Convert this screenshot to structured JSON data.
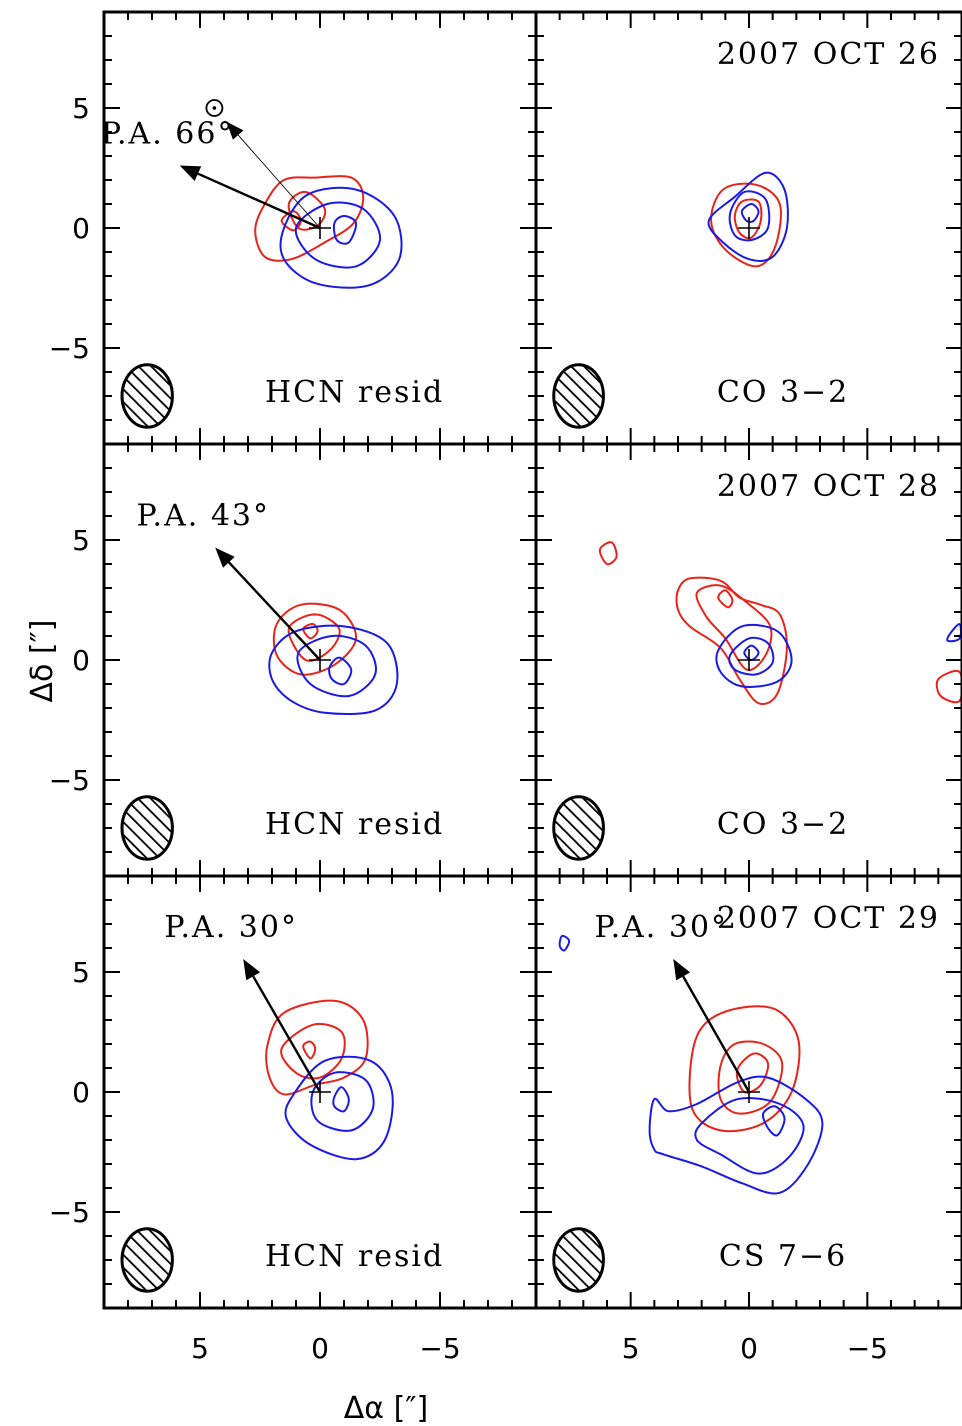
{
  "chart_data": {
    "type": "contour",
    "xlabel": "Δα [″]",
    "ylabel": "Δδ [″]",
    "xlim": [
      9,
      -9
    ],
    "ylim": [
      -9,
      9
    ],
    "x_ticks": [
      5,
      0,
      -5
    ],
    "x_tick_labels": [
      "5",
      "0",
      "−5"
    ],
    "y_ticks": [
      5,
      0,
      -5
    ],
    "y_tick_labels": [
      "5",
      "0",
      "−5"
    ],
    "colors": {
      "red": "#e8231a",
      "blue": "#1a1ae6",
      "axis": "#000000"
    },
    "panels": [
      {
        "row": 0,
        "col": 0,
        "label": "HCN resid",
        "date": "",
        "pa_label": "P.A. 66°",
        "pa_deg": 66,
        "sun_symbol": "⊙",
        "sun_pos": [
          4.4,
          5.0
        ],
        "red": [
          [
            [
              2.3,
              1.0
            ],
            [
              1.5,
              2.0
            ],
            [
              0.2,
              2.1
            ],
            [
              -1.3,
              2.1
            ],
            [
              -1.8,
              1.3
            ],
            [
              -1.4,
              0.2
            ],
            [
              -0.2,
              -0.6
            ],
            [
              1.2,
              -1.3
            ],
            [
              2.3,
              -1.2
            ],
            [
              2.7,
              -0.1
            ]
          ],
          [
            [
              1.3,
              1.0
            ],
            [
              0.6,
              1.5
            ],
            [
              -0.2,
              0.8
            ],
            [
              0.1,
              0.1
            ],
            [
              0.9,
              0.0
            ]
          ],
          [
            [
              1.6,
              0.3
            ],
            [
              1.1,
              0.7
            ],
            [
              0.8,
              0.3
            ],
            [
              1.1,
              -0.1
            ]
          ]
        ],
        "blue": [
          [
            [
              1.5,
              0.0
            ],
            [
              0.5,
              1.4
            ],
            [
              -1.5,
              1.6
            ],
            [
              -3.1,
              0.5
            ],
            [
              -3.3,
              -1.3
            ],
            [
              -2.0,
              -2.4
            ],
            [
              0.2,
              -2.3
            ],
            [
              1.5,
              -1.3
            ]
          ],
          [
            [
              1.0,
              0.0
            ],
            [
              -0.3,
              1.0
            ],
            [
              -1.8,
              0.8
            ],
            [
              -2.5,
              -0.5
            ],
            [
              -1.5,
              -1.6
            ],
            [
              0.2,
              -1.3
            ]
          ],
          [
            [
              -0.6,
              0.2
            ],
            [
              -1.0,
              0.5
            ],
            [
              -1.5,
              0.2
            ],
            [
              -1.2,
              -0.6
            ],
            [
              -0.7,
              -0.5
            ]
          ]
        ]
      },
      {
        "row": 0,
        "col": 1,
        "label": "CO 3−2",
        "date": "2007 OCT 26",
        "pa_label": "",
        "red": [
          [
            [
              1.6,
              0.3
            ],
            [
              1.1,
              1.6
            ],
            [
              -0.3,
              1.8
            ],
            [
              -1.3,
              1.0
            ],
            [
              -1.1,
              -0.8
            ],
            [
              -0.3,
              -1.6
            ],
            [
              1.0,
              -0.9
            ]
          ],
          [
            [
              0.6,
              0.5
            ],
            [
              0.3,
              1.1
            ],
            [
              -0.4,
              1.1
            ],
            [
              -0.5,
              0.3
            ],
            [
              -0.1,
              -0.4
            ],
            [
              0.4,
              -0.2
            ]
          ]
        ],
        "blue": [
          [
            [
              1.7,
              0.3
            ],
            [
              0.6,
              1.3
            ],
            [
              -0.7,
              2.3
            ],
            [
              -1.5,
              1.6
            ],
            [
              -1.6,
              0.0
            ],
            [
              -1.0,
              -1.2
            ],
            [
              0.0,
              -1.3
            ],
            [
              1.1,
              -0.6
            ]
          ],
          [
            [
              0.8,
              0.6
            ],
            [
              0.2,
              1.5
            ],
            [
              -0.7,
              1.2
            ],
            [
              -0.8,
              0.0
            ],
            [
              -0.1,
              -0.5
            ],
            [
              0.6,
              -0.3
            ]
          ],
          [
            [
              0.3,
              0.7
            ],
            [
              -0.1,
              1.0
            ],
            [
              -0.4,
              0.7
            ],
            [
              -0.2,
              0.3
            ],
            [
              0.1,
              0.3
            ]
          ]
        ]
      },
      {
        "row": 1,
        "col": 0,
        "label": "HCN resid",
        "date": "",
        "pa_label": "P.A. 43°",
        "pa_deg": 43,
        "red": [
          [
            [
              1.8,
              1.5
            ],
            [
              0.8,
              2.3
            ],
            [
              -0.8,
              2.1
            ],
            [
              -1.5,
              0.9
            ],
            [
              -0.6,
              -0.2
            ],
            [
              0.8,
              -0.6
            ],
            [
              1.8,
              0.2
            ]
          ],
          [
            [
              1.3,
              1.3
            ],
            [
              0.2,
              1.9
            ],
            [
              -0.8,
              1.3
            ],
            [
              -0.4,
              0.4
            ],
            [
              0.6,
              0.0
            ]
          ],
          [
            [
              0.7,
              1.3
            ],
            [
              0.3,
              1.5
            ],
            [
              0.1,
              1.2
            ],
            [
              0.4,
              0.9
            ]
          ]
        ],
        "blue": [
          [
            [
              2.0,
              0.3
            ],
            [
              1.0,
              1.2
            ],
            [
              -1.0,
              1.4
            ],
            [
              -2.8,
              0.7
            ],
            [
              -3.2,
              -1.0
            ],
            [
              -2.3,
              -2.1
            ],
            [
              -0.2,
              -2.2
            ],
            [
              1.2,
              -1.7
            ],
            [
              2.0,
              -0.8
            ]
          ],
          [
            [
              0.9,
              0.3
            ],
            [
              -0.5,
              1.0
            ],
            [
              -1.9,
              0.6
            ],
            [
              -2.3,
              -0.6
            ],
            [
              -1.2,
              -1.5
            ],
            [
              0.4,
              -1.0
            ]
          ],
          [
            [
              -0.4,
              -0.3
            ],
            [
              -0.8,
              0.1
            ],
            [
              -1.3,
              -0.4
            ],
            [
              -1.0,
              -1.0
            ],
            [
              -0.5,
              -0.8
            ]
          ]
        ]
      },
      {
        "row": 1,
        "col": 1,
        "label": "CO 3−2",
        "date": "2007 OCT 28",
        "pa_label": "",
        "red": [
          [
            [
              3.0,
              2.9
            ],
            [
              2.5,
              3.4
            ],
            [
              1.2,
              3.3
            ],
            [
              0.4,
              2.6
            ],
            [
              -0.5,
              2.3
            ],
            [
              -1.3,
              1.9
            ],
            [
              -1.6,
              0.5
            ],
            [
              -1.2,
              -1.4
            ],
            [
              -0.4,
              -1.8
            ],
            [
              0.4,
              -0.8
            ],
            [
              1.2,
              0.5
            ],
            [
              2.5,
              1.4
            ],
            [
              3.0,
              2.1
            ]
          ],
          [
            [
              2.2,
              2.8
            ],
            [
              1.2,
              3.1
            ],
            [
              0.1,
              2.4
            ],
            [
              -0.9,
              1.4
            ],
            [
              -0.7,
              0.2
            ],
            [
              0.1,
              -0.4
            ],
            [
              1.0,
              0.9
            ],
            [
              1.8,
              1.8
            ]
          ],
          [
            [
              1.3,
              2.6
            ],
            [
              1.0,
              2.9
            ],
            [
              0.7,
              2.5
            ],
            [
              0.9,
              2.2
            ]
          ],
          [
            [
              6.3,
              4.6
            ],
            [
              5.8,
              4.9
            ],
            [
              5.6,
              4.3
            ],
            [
              6.0,
              4.0
            ]
          ],
          [
            [
              -8.0,
              -0.8
            ],
            [
              -8.9,
              -0.5
            ],
            [
              -8.9,
              -1.7
            ],
            [
              -8.1,
              -1.5
            ]
          ]
        ],
        "blue": [
          [
            [
              1.3,
              0.4
            ],
            [
              0.3,
              1.4
            ],
            [
              -1.2,
              1.2
            ],
            [
              -1.8,
              0.0
            ],
            [
              -1.2,
              -0.9
            ],
            [
              0.3,
              -1.1
            ],
            [
              1.2,
              -0.5
            ]
          ],
          [
            [
              0.8,
              0.2
            ],
            [
              0.0,
              0.9
            ],
            [
              -0.8,
              0.7
            ],
            [
              -1.0,
              -0.1
            ],
            [
              -0.3,
              -0.6
            ],
            [
              0.6,
              -0.4
            ]
          ],
          [
            [
              0.2,
              0.3
            ],
            [
              -0.1,
              0.6
            ],
            [
              -0.4,
              0.3
            ],
            [
              -0.1,
              0.0
            ]
          ],
          [
            [
              -8.5,
              1.1
            ],
            [
              -8.9,
              1.5
            ],
            [
              -8.9,
              0.9
            ],
            [
              -8.4,
              0.8
            ]
          ]
        ]
      },
      {
        "row": 2,
        "col": 0,
        "label": "HCN resid",
        "date": "",
        "pa_label": "P.A. 30°",
        "pa_deg": 30,
        "red": [
          [
            [
              2.2,
              1.9
            ],
            [
              1.5,
              3.3
            ],
            [
              -0.6,
              3.8
            ],
            [
              -1.8,
              3.0
            ],
            [
              -1.9,
              1.4
            ],
            [
              -1.0,
              0.6
            ],
            [
              0.2,
              0.3
            ],
            [
              1.5,
              -0.1
            ],
            [
              2.1,
              0.6
            ]
          ],
          [
            [
              1.6,
              1.8
            ],
            [
              0.3,
              2.8
            ],
            [
              -0.9,
              2.5
            ],
            [
              -0.9,
              1.4
            ],
            [
              0.0,
              0.6
            ],
            [
              1.0,
              0.8
            ]
          ],
          [
            [
              0.7,
              1.9
            ],
            [
              0.4,
              2.1
            ],
            [
              0.2,
              1.8
            ],
            [
              0.4,
              1.4
            ]
          ]
        ],
        "blue": [
          [
            [
              1.1,
              -0.1
            ],
            [
              -0.2,
              1.3
            ],
            [
              -2.1,
              1.3
            ],
            [
              -3.0,
              0.0
            ],
            [
              -2.7,
              -2.0
            ],
            [
              -1.5,
              -2.8
            ],
            [
              0.4,
              -2.2
            ],
            [
              1.4,
              -1.1
            ]
          ],
          [
            [
              0.3,
              0.0
            ],
            [
              -0.6,
              0.8
            ],
            [
              -1.9,
              0.5
            ],
            [
              -2.2,
              -0.7
            ],
            [
              -1.3,
              -1.6
            ],
            [
              0.1,
              -1.2
            ]
          ],
          [
            [
              -0.6,
              -0.2
            ],
            [
              -0.9,
              0.2
            ],
            [
              -1.2,
              -0.3
            ],
            [
              -1.0,
              -0.8
            ],
            [
              -0.6,
              -0.6
            ]
          ]
        ]
      },
      {
        "row": 2,
        "col": 1,
        "label": "CS 7−6",
        "date": "2007 OCT 29",
        "pa_label": "P.A. 30°",
        "pa_deg": 30,
        "red": [
          [
            [
              2.4,
              1.6
            ],
            [
              1.8,
              2.9
            ],
            [
              0.4,
              3.5
            ],
            [
              -1.2,
              3.4
            ],
            [
              -2.1,
              2.1
            ],
            [
              -1.8,
              0.0
            ],
            [
              -0.6,
              -1.3
            ],
            [
              1.2,
              -1.6
            ],
            [
              2.4,
              -0.7
            ]
          ],
          [
            [
              1.2,
              1.1
            ],
            [
              0.6,
              2.0
            ],
            [
              -0.6,
              2.0
            ],
            [
              -1.4,
              1.2
            ],
            [
              -0.9,
              -0.4
            ],
            [
              0.4,
              -0.9
            ],
            [
              1.2,
              -0.3
            ]
          ],
          [
            [
              0.5,
              0.9
            ],
            [
              -0.2,
              1.6
            ],
            [
              -0.8,
              1.2
            ],
            [
              -0.5,
              0.3
            ],
            [
              0.2,
              0.0
            ]
          ]
        ],
        "blue": [
          [
            [
              4.0,
              -0.3
            ],
            [
              3.4,
              -0.8
            ],
            [
              2.2,
              -0.5
            ],
            [
              0.5,
              0.4
            ],
            [
              -0.8,
              0.6
            ],
            [
              -2.4,
              -0.3
            ],
            [
              -3.1,
              -1.3
            ],
            [
              -2.5,
              -3.0
            ],
            [
              -1.3,
              -4.2
            ],
            [
              0.3,
              -3.8
            ],
            [
              2.0,
              -3.1
            ],
            [
              3.6,
              -2.6
            ],
            [
              4.0,
              -2.4
            ],
            [
              4.2,
              -1.6
            ]
          ],
          [
            [
              2.0,
              -1.3
            ],
            [
              0.5,
              -0.3
            ],
            [
              -1.3,
              -0.5
            ],
            [
              -2.3,
              -1.4
            ],
            [
              -1.7,
              -2.7
            ],
            [
              -0.4,
              -3.4
            ],
            [
              1.2,
              -2.6
            ],
            [
              2.2,
              -2.0
            ]
          ],
          [
            [
              -0.6,
              -0.9
            ],
            [
              -1.1,
              -0.6
            ],
            [
              -1.5,
              -1.1
            ],
            [
              -1.2,
              -1.8
            ],
            [
              -0.8,
              -1.5
            ]
          ],
          [
            [
              7.8,
              5.9
            ],
            [
              7.6,
              6.3
            ],
            [
              7.9,
              6.5
            ],
            [
              8.0,
              6.1
            ]
          ]
        ]
      }
    ],
    "beam": {
      "center": [
        7.2,
        -7.0
      ],
      "rx": 1.05,
      "ry": 1.3
    }
  }
}
